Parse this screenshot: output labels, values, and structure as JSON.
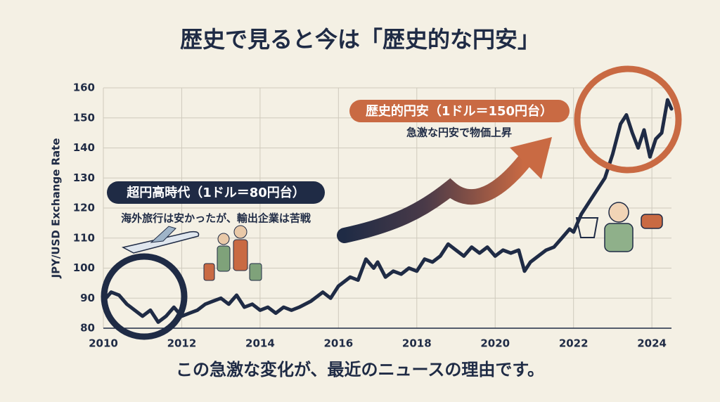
{
  "chart_data": {
    "type": "line",
    "title": "歴史で見ると今は「歴史的な円安」",
    "y_label": "JPY/USD Exchange Rate",
    "footer": "この急激な変化が、最近のニュースの理由です。",
    "annotations": [
      {
        "label": "超円高時代（1ドル＝80円台）",
        "note": "海外旅行は安かったが、輸出企業は苦戦"
      },
      {
        "label": "歴史的円安（1ドル＝150円台）",
        "note": "急激な円安で物価上昇"
      }
    ],
    "x": [
      2010.0,
      2010.2,
      2010.4,
      2010.6,
      2010.8,
      2011.0,
      2011.2,
      2011.4,
      2011.6,
      2011.8,
      2012.0,
      2012.2,
      2012.4,
      2012.6,
      2012.8,
      2013.0,
      2013.2,
      2013.4,
      2013.6,
      2013.8,
      2014.0,
      2014.2,
      2014.4,
      2014.6,
      2014.8,
      2015.0,
      2015.3,
      2015.6,
      2015.8,
      2016.0,
      2016.3,
      2016.5,
      2016.7,
      2016.9,
      2017.0,
      2017.2,
      2017.4,
      2017.6,
      2017.8,
      2018.0,
      2018.2,
      2018.4,
      2018.6,
      2018.8,
      2019.0,
      2019.2,
      2019.4,
      2019.6,
      2019.8,
      2020.0,
      2020.2,
      2020.4,
      2020.6,
      2020.75,
      2020.9,
      2021.1,
      2021.3,
      2021.5,
      2021.7,
      2021.9,
      2022.0,
      2022.2,
      2022.4,
      2022.6,
      2022.8,
      2023.0,
      2023.2,
      2023.35,
      2023.5,
      2023.65,
      2023.8,
      2023.95,
      2024.1,
      2024.25,
      2024.4,
      2024.5
    ],
    "values": [
      89,
      92,
      91,
      88,
      86,
      84,
      86,
      82,
      84,
      87,
      84,
      85,
      86,
      88,
      89,
      90,
      88,
      91,
      87,
      88,
      86,
      87,
      85,
      87,
      86,
      87,
      89,
      92,
      90,
      94,
      97,
      96,
      103,
      100,
      102,
      97,
      99,
      98,
      100,
      99,
      103,
      102,
      104,
      108,
      106,
      104,
      107,
      105,
      107,
      104,
      106,
      105,
      106,
      99,
      102,
      104,
      106,
      107,
      110,
      113,
      112,
      118,
      122,
      126,
      130,
      138,
      148,
      151,
      145,
      140,
      146,
      137,
      143,
      145,
      156,
      153
    ],
    "color": "#1f2b45",
    "xlim": [
      2010,
      2024.5
    ],
    "xticks": [
      2010,
      2012,
      2014,
      2016,
      2018,
      2020,
      2022,
      2024
    ],
    "ylim": [
      80,
      160
    ],
    "yticks": [
      80,
      90,
      100,
      110,
      120,
      130,
      140,
      150,
      160
    ],
    "grid": true
  }
}
